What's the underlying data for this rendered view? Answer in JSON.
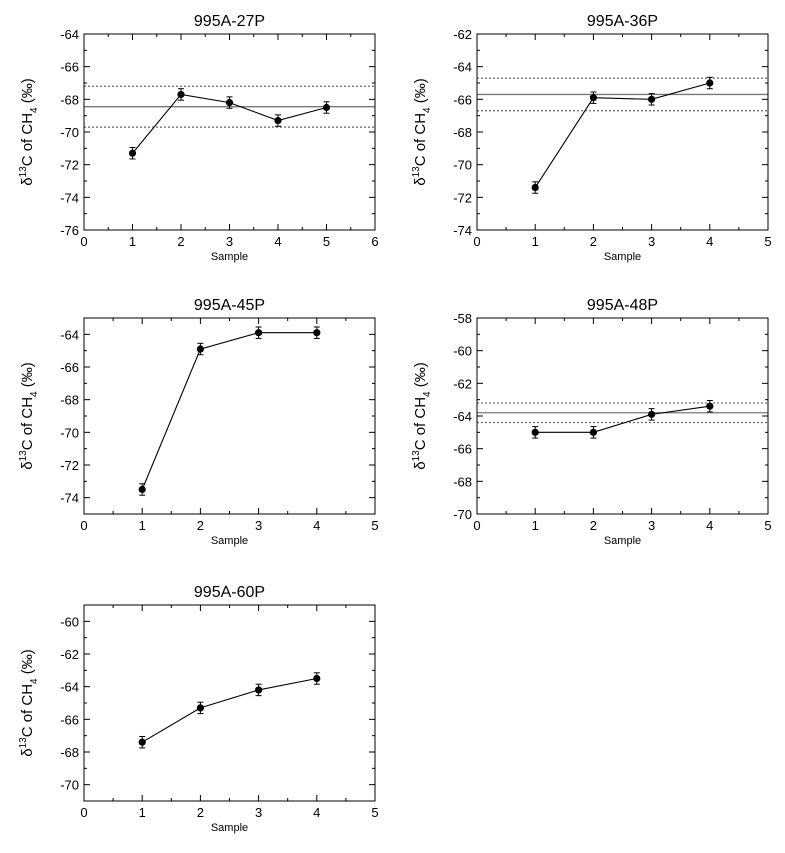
{
  "chart_data": [
    {
      "type": "line",
      "title": "995A-27P",
      "xlabel": "Sample",
      "ylabel_parts": [
        "δ",
        "13",
        "C of CH",
        "4",
        " (‰)"
      ],
      "xlim": [
        0,
        6
      ],
      "ylim": [
        -76,
        -64
      ],
      "xticks": [
        0,
        1,
        2,
        3,
        4,
        5,
        6
      ],
      "yticks": [
        -76,
        -74,
        -72,
        -70,
        -68,
        -66,
        -64
      ],
      "grid": false,
      "series": [
        {
          "x": [
            1,
            2,
            3,
            4,
            5
          ],
          "y": [
            -71.3,
            -67.7,
            -68.2,
            -69.3,
            -68.5
          ],
          "error": [
            0.35,
            0.35,
            0.35,
            0.35,
            0.35
          ]
        }
      ],
      "mean_line": -68.45,
      "band": [
        -67.2,
        -69.7
      ]
    },
    {
      "type": "line",
      "title": "995A-36P",
      "xlabel": "Sample",
      "ylabel_parts": [
        "δ",
        "13",
        "C of CH",
        "4",
        " (‰)"
      ],
      "xlim": [
        0,
        5
      ],
      "ylim": [
        -74,
        -62
      ],
      "xticks": [
        0,
        1,
        2,
        3,
        4,
        5
      ],
      "yticks": [
        -74,
        -72,
        -70,
        -68,
        -66,
        -64,
        -62
      ],
      "grid": false,
      "series": [
        {
          "x": [
            1,
            2,
            3,
            4
          ],
          "y": [
            -71.4,
            -65.9,
            -66.0,
            -65.0
          ],
          "error": [
            0.35,
            0.35,
            0.35,
            0.35
          ]
        }
      ],
      "mean_line": -65.7,
      "band": [
        -64.7,
        -66.7
      ]
    },
    {
      "type": "line",
      "title": "995A-45P",
      "xlabel": "Sample",
      "ylabel_parts": [
        "δ",
        "13",
        "C of CH",
        "4",
        " (‰)"
      ],
      "xlim": [
        0,
        5
      ],
      "ylim": [
        -75,
        -63
      ],
      "xticks": [
        0,
        1,
        2,
        3,
        4,
        5
      ],
      "yticks": [
        -74,
        -72,
        -70,
        -68,
        -66,
        -64
      ],
      "grid": false,
      "series": [
        {
          "x": [
            1,
            2,
            3,
            4
          ],
          "y": [
            -73.5,
            -64.9,
            -63.9,
            -63.9
          ],
          "error": [
            0.35,
            0.35,
            0.35,
            0.35
          ]
        }
      ]
    },
    {
      "type": "line",
      "title": "995A-48P",
      "xlabel": "Sample",
      "ylabel_parts": [
        "δ",
        "13",
        "C of CH",
        "4",
        " (‰)"
      ],
      "xlim": [
        0,
        5
      ],
      "ylim": [
        -70,
        -58
      ],
      "xticks": [
        0,
        1,
        2,
        3,
        4,
        5
      ],
      "yticks": [
        -70,
        -68,
        -66,
        -64,
        -62,
        -60,
        -58
      ],
      "grid": false,
      "series": [
        {
          "x": [
            1,
            2,
            3,
            4
          ],
          "y": [
            -65.0,
            -65.0,
            -63.9,
            -63.4
          ],
          "error": [
            0.35,
            0.35,
            0.35,
            0.35
          ]
        }
      ],
      "mean_line": -63.8,
      "band": [
        -63.2,
        -64.4
      ]
    },
    {
      "type": "line",
      "title": "995A-60P",
      "xlabel": "Sample",
      "ylabel_parts": [
        "δ",
        "13",
        "C of CH",
        "4",
        " (‰)"
      ],
      "xlim": [
        0,
        5
      ],
      "ylim": [
        -71,
        -59
      ],
      "xticks": [
        0,
        1,
        2,
        3,
        4,
        5
      ],
      "yticks": [
        -70,
        -68,
        -66,
        -64,
        -62,
        -60
      ],
      "grid": false,
      "series": [
        {
          "x": [
            1,
            2,
            3,
            4
          ],
          "y": [
            -67.4,
            -65.3,
            -64.2,
            -63.5
          ],
          "error": [
            0.35,
            0.35,
            0.35,
            0.35
          ]
        }
      ]
    }
  ]
}
